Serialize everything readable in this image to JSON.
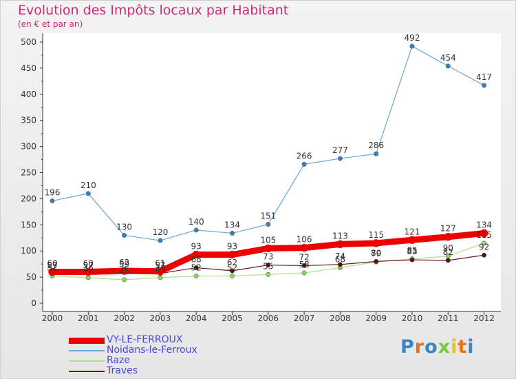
{
  "title": "Evolution des Impôts locaux par Habitant",
  "subtitle": "(en € et par an)",
  "logo": "Proxiti",
  "chart_data": {
    "type": "line",
    "x": [
      "2000",
      "2001",
      "2002",
      "2003",
      "2004",
      "2005",
      "2006",
      "2007",
      "2008",
      "2009",
      "2010",
      "2011",
      "2012"
    ],
    "ylim": [
      0,
      500
    ],
    "yticks": [
      0,
      50,
      100,
      150,
      200,
      250,
      300,
      350,
      400,
      450,
      500
    ],
    "grid": false,
    "legend_position": "bottom-left",
    "series": [
      {
        "name": "Noidans-le-Ferroux",
        "color": "#6aa6d6",
        "marker": "#3a80c0",
        "width": 1.2,
        "values": [
          196,
          210,
          130,
          120,
          140,
          134,
          151,
          266,
          277,
          286,
          492,
          454,
          417
        ],
        "labels": true
      },
      {
        "name": "Raze",
        "color": "#a9e089",
        "marker": "#8cd45a",
        "width": 1.2,
        "values": [
          52,
          49,
          45,
          49,
          52,
          52,
          55,
          58,
          68,
          79,
          85,
          90,
          115
        ],
        "labels": true
      },
      {
        "name": "Traves",
        "color": "#6b1a1a",
        "marker": "#5a1010",
        "width": 1.2,
        "values": [
          57,
          57,
          59,
          57,
          68,
          62,
          73,
          72,
          74,
          80,
          83,
          82,
          92
        ],
        "labels": true
      },
      {
        "name": "VY-LE-FERROUX",
        "color": "#ee0000",
        "marker": "#ee0000",
        "width": 9,
        "values": [
          60,
          60,
          62,
          61,
          93,
          93,
          105,
          106,
          113,
          115,
          121,
          127,
          134
        ],
        "labels": true
      }
    ]
  },
  "legend_order": [
    "VY-LE-FERROUX",
    "Noidans-le-Ferroux",
    "Raze",
    "Traves"
  ]
}
